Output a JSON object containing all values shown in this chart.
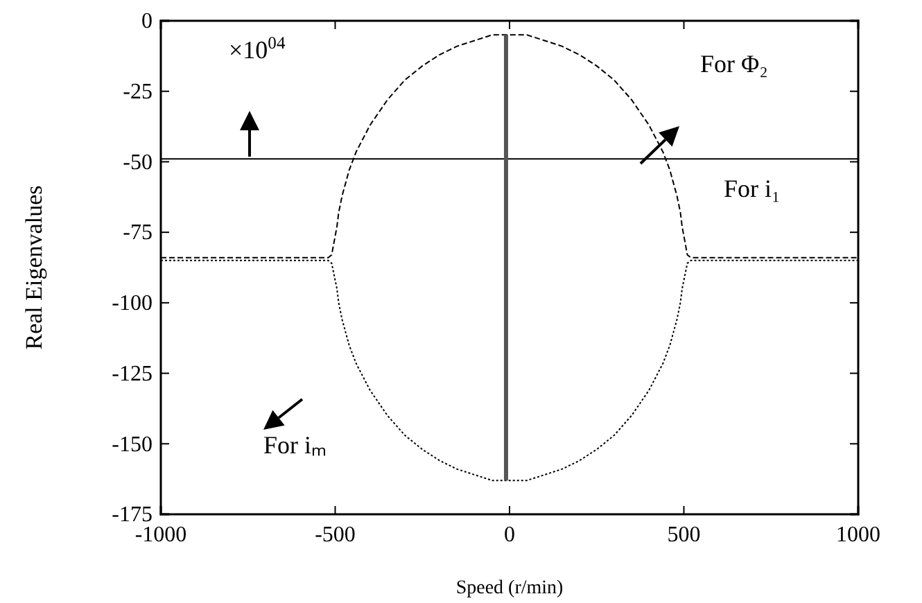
{
  "chart_data": {
    "type": "line",
    "xlabel": "Speed (r/min)",
    "ylabel": "Real Eigenvalues",
    "xlim": [
      -1000,
      1000
    ],
    "xticks": [
      -1000,
      -500,
      0,
      500,
      1000
    ],
    "ylim": [
      -175,
      0
    ],
    "yticks": [
      -175,
      -150,
      -125,
      -100,
      -75,
      -50,
      -25,
      0
    ],
    "grid": false,
    "annotations": [
      "×10$^{04}$",
      "For Φ₂",
      "For i₁",
      "For iₘ"
    ],
    "series": [
      {
        "color": "#000000",
        "line_style": "dashed",
        "x": [
          -1000,
          -520,
          -510,
          -495,
          -490,
          -480,
          -460,
          -440,
          -400,
          -350,
          -300,
          -250,
          -200,
          -150,
          -100,
          -50,
          0,
          50,
          100,
          150,
          200,
          250,
          300,
          350,
          400,
          440,
          460,
          480,
          490,
          495,
          510,
          520,
          1000
        ],
        "values": [
          -84,
          -84,
          -83,
          -73,
          -68,
          -62,
          -53,
          -46.5,
          -37,
          -28,
          -21,
          -16,
          -12,
          -9,
          -7,
          -5,
          -5,
          -5,
          -7,
          -9,
          -12,
          -16,
          -21,
          -28,
          -37,
          -46.5,
          -53,
          -62,
          -68,
          -73,
          -83,
          -84,
          -84
        ]
      },
      {
        "color": "#000000",
        "line_style": "dotted",
        "x": [
          -1000,
          -520,
          -510,
          -495,
          -490,
          -480,
          -460,
          -440,
          -400,
          -350,
          -300,
          -250,
          -200,
          -150,
          -100,
          -50,
          0,
          50,
          100,
          150,
          200,
          250,
          300,
          350,
          400,
          440,
          460,
          480,
          490,
          495,
          510,
          520,
          1000
        ],
        "values": [
          -85,
          -85,
          -86,
          -95,
          -100,
          -106,
          -115,
          -121.5,
          -131,
          -140,
          -147,
          -152,
          -156,
          -159,
          -161,
          -163,
          -163,
          -163,
          -161,
          -159,
          -156,
          -152,
          -147,
          -140,
          -131,
          -121.5,
          -115,
          -106,
          -100,
          -95,
          -86,
          -85,
          -85
        ]
      },
      {
        "color": "#000000",
        "line_style": "solid",
        "x": [
          -1000,
          1000
        ],
        "values": [
          -49,
          -49
        ]
      },
      {
        "color": "#555555",
        "line_style": "solid",
        "x": [
          -10,
          -10
        ],
        "values": [
          -5,
          -163
        ]
      }
    ]
  }
}
